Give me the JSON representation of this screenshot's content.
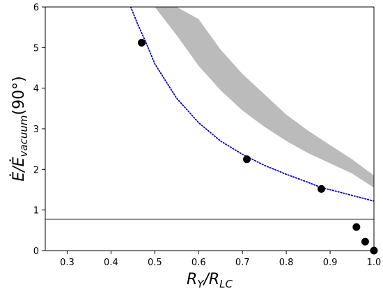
{
  "chart_data": {
    "type": "scatter",
    "xlim": [
      0.25,
      1.0
    ],
    "ylim": [
      0,
      6
    ],
    "xticks": [
      0.3,
      0.4,
      0.5,
      0.6,
      0.7,
      0.8,
      0.9,
      1.0
    ],
    "xtick_labels": [
      "0.3",
      "0.4",
      "0.5",
      "0.6",
      "0.7",
      "0.8",
      "0.9",
      "1.0"
    ],
    "yticks": [
      0,
      1,
      2,
      3,
      4,
      5,
      6
    ],
    "ytick_labels": [
      "0",
      "1",
      "2",
      "3",
      "4",
      "5",
      "6"
    ],
    "xlabel_main": "R",
    "xlabel_sub1": "Y",
    "xlabel_sep": "/R",
    "xlabel_sub2": "LC",
    "ylabel_main": "Ė/Ė",
    "ylabel_sub": "vacuum",
    "ylabel_suffix": "(90°)",
    "points": {
      "x": [
        0.47,
        0.71,
        0.88,
        0.96,
        0.98,
        1.0
      ],
      "y": [
        5.12,
        2.25,
        1.52,
        0.58,
        0.22,
        0.0
      ],
      "color": "#000000"
    },
    "reference_line": {
      "y": 0.77,
      "color": "#444444"
    },
    "dotted_curve": {
      "x": [
        0.445,
        0.46,
        0.48,
        0.5,
        0.55,
        0.6,
        0.65,
        0.7,
        0.75,
        0.8,
        0.85,
        0.88,
        0.9,
        0.95,
        1.0
      ],
      "y": [
        6.0,
        5.6,
        5.12,
        4.6,
        3.75,
        3.15,
        2.7,
        2.37,
        2.1,
        1.88,
        1.68,
        1.55,
        1.5,
        1.36,
        1.22
      ],
      "color": "#0000cc"
    },
    "band": {
      "x": [
        0.5,
        0.55,
        0.6,
        0.65,
        0.7,
        0.75,
        0.8,
        0.85,
        0.9,
        0.95,
        1.0
      ],
      "lower": [
        6.0,
        5.3,
        4.55,
        3.95,
        3.45,
        3.05,
        2.7,
        2.4,
        2.15,
        1.9,
        1.55
      ],
      "upper": [
        6.0,
        6.0,
        5.7,
        4.95,
        4.35,
        3.85,
        3.35,
        2.95,
        2.6,
        2.25,
        1.85
      ],
      "color": "#bbbbbb"
    },
    "grid": false
  }
}
